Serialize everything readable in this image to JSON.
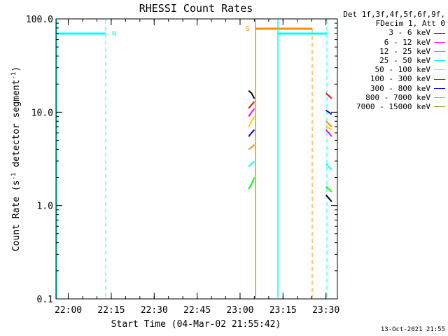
{
  "chart_data": {
    "type": "line",
    "title": "RHESSI Count Rates",
    "xlabel": "Start Time (04-Mar-02 21:55:42)",
    "ylabel_parts": [
      "Count Rate (s",
      "-1",
      " detector segment",
      "-1",
      ")"
    ],
    "y_scale": "log",
    "ylim": [
      0.1,
      100.0
    ],
    "xlim": [
      "21:55:42",
      "23:34:00"
    ],
    "x_ticks": [
      "22:00",
      "22:15",
      "22:30",
      "22:45",
      "23:00",
      "23:15",
      "23:30"
    ],
    "y_ticks": [
      "0.1",
      "1.0",
      "10.0",
      "100.0"
    ],
    "grid": false,
    "legend_position": "right",
    "legend_header": [
      "Det 1f,3f,4f,5f,6f,9f,",
      "FDecim 1, Att 0"
    ],
    "series": [
      {
        "name": "3 - 6 keV",
        "color": "#000000",
        "segments": [
          {
            "x": [
              "23:03:00",
              "23:04:00",
              "23:05:00"
            ],
            "y": [
              17,
              16,
              14
            ]
          },
          {
            "x": [
              "23:30:00",
              "23:31:00",
              "23:32:00"
            ],
            "y": [
              1.3,
              1.2,
              1.1
            ]
          }
        ]
      },
      {
        "name": "6 - 12 keV",
        "color": "#ff00ff",
        "segments": [
          {
            "x": [
              "23:03:00",
              "23:04:00",
              "23:05:00"
            ],
            "y": [
              9,
              10,
              11
            ]
          },
          {
            "x": [
              "23:30:00",
              "23:31:00",
              "23:32:00"
            ],
            "y": [
              6.5,
              6.0,
              5.5
            ]
          }
        ]
      },
      {
        "name": "12 - 25 keV",
        "color": "#00ff00",
        "segments": [
          {
            "x": [
              "23:03:00",
              "23:04:00",
              "23:05:00"
            ],
            "y": [
              1.5,
              1.7,
              2.0
            ]
          },
          {
            "x": [
              "23:30:00",
              "23:31:00",
              "23:32:00"
            ],
            "y": [
              1.6,
              1.5,
              1.4
            ]
          }
        ]
      },
      {
        "name": "25 - 50 keV",
        "color": "#00ffff",
        "segments": [
          {
            "x": [
              "23:03:00",
              "23:04:00",
              "23:05:00"
            ],
            "y": [
              2.6,
              2.8,
              3.0
            ]
          },
          {
            "x": [
              "23:30:00",
              "23:31:00",
              "23:32:00"
            ],
            "y": [
              2.8,
              2.6,
              2.4
            ]
          }
        ]
      },
      {
        "name": "50 - 100 keV",
        "color": "#ffcc00",
        "segments": [
          {
            "x": [
              "23:03:00",
              "23:04:00",
              "23:05:00"
            ],
            "y": [
              7,
              8,
              9
            ]
          },
          {
            "x": [
              "23:30:00",
              "23:31:00",
              "23:32:00"
            ],
            "y": [
              7,
              6.8,
              6.5
            ]
          }
        ]
      },
      {
        "name": "100 - 300 keV",
        "color": "#ff0000",
        "segments": [
          {
            "x": [
              "23:03:00",
              "23:04:00",
              "23:05:00"
            ],
            "y": [
              11,
              12,
              13
            ]
          },
          {
            "x": [
              "23:30:00",
              "23:31:00",
              "23:32:00"
            ],
            "y": [
              16,
              15,
              14
            ]
          }
        ]
      },
      {
        "name": "300 - 800 keV",
        "color": "#0000ff",
        "segments": [
          {
            "x": [
              "23:03:00",
              "23:04:00",
              "23:05:00"
            ],
            "y": [
              5.5,
              6,
              6.5
            ]
          },
          {
            "x": [
              "23:30:00",
              "23:31:00",
              "23:32:00"
            ],
            "y": [
              10.5,
              10,
              9.5
            ]
          }
        ]
      },
      {
        "name": "800 - 7000 keV",
        "color": "#ff8c00",
        "segments": [
          {
            "x": [
              "23:03:00",
              "23:04:00",
              "23:05:00"
            ],
            "y": [
              4,
              4.2,
              4.5
            ]
          },
          {
            "x": [
              "23:30:00",
              "23:31:00",
              "23:32:00"
            ],
            "y": [
              8,
              7.5,
              7
            ]
          }
        ]
      },
      {
        "name": "7000 - 15000 keV",
        "color": "#808000",
        "segments": []
      }
    ],
    "annotations": [
      {
        "label": "N",
        "color": "#00ffff"
      },
      {
        "label": "S",
        "color": "#ff8c00"
      }
    ],
    "footer": "13-Oct-2021 21:55"
  }
}
